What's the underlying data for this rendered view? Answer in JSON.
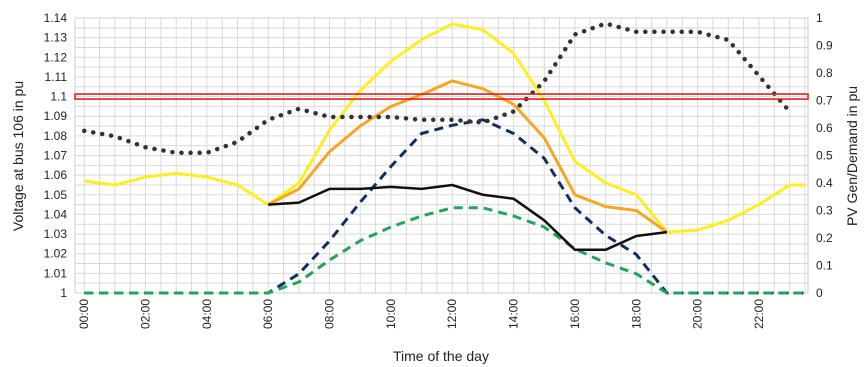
{
  "chart_data": {
    "type": "line",
    "xlabel": "Time of the day",
    "ylabel": "Voltage at bus 106 in pu",
    "y2label": "PV Gen/Demand in pu",
    "x_tick_labels": [
      "00:00",
      "02:00",
      "04:00",
      "06:00",
      "08:00",
      "10:00",
      "12:00",
      "14:00",
      "16:00",
      "18:00",
      "20:00",
      "22:00"
    ],
    "x_hours": [
      0,
      2,
      4,
      6,
      8,
      10,
      12,
      14,
      16,
      18,
      20,
      22
    ],
    "x_range_hours": [
      -0.3,
      23.6
    ],
    "ylim": [
      1.0,
      1.14
    ],
    "y_ticks": [
      1,
      1.01,
      1.02,
      1.03,
      1.04,
      1.05,
      1.06,
      1.07,
      1.08,
      1.09,
      1.1,
      1.11,
      1.12,
      1.13,
      1.14
    ],
    "y_tick_labels": [
      "1",
      "1.01",
      "1.02",
      "1.03",
      "1.04",
      "1.05",
      "1.06",
      "1.07",
      "1.08",
      "1.09",
      "1.1",
      "1.11",
      "1.12",
      "1.13",
      "1.14"
    ],
    "y2lim": [
      0,
      1.0
    ],
    "y2_ticks": [
      0,
      0.1,
      0.2,
      0.3,
      0.4,
      0.5,
      0.6,
      0.7,
      0.8,
      0.9,
      1
    ],
    "y2_tick_labels": [
      "0",
      "0.1",
      "0.2",
      "0.3",
      "0.4",
      "0.5",
      "0.6",
      "0.7",
      "0.8",
      "0.9",
      "1"
    ],
    "grid": true,
    "colors": {
      "limit": "#e02020",
      "yellow": "#ffee22",
      "orange": "#f5a623",
      "black": "#111111",
      "navy": "#12305e",
      "green": "#22a55a",
      "dots": "#333333",
      "grid": "#d9d9d9"
    },
    "series": [
      {
        "axis": "left",
        "style": "limit",
        "x": [
          -0.3,
          23.6
        ],
        "y": [
          1.1,
          1.1
        ]
      },
      {
        "axis": "left",
        "style": "yellow",
        "x": [
          0,
          1,
          2,
          3,
          4,
          5,
          6,
          7,
          8,
          9,
          10,
          11,
          12,
          13,
          14,
          15,
          16,
          17,
          18,
          19,
          20,
          21,
          22,
          23,
          23.5
        ],
        "y": [
          1.057,
          1.055,
          1.059,
          1.061,
          1.059,
          1.055,
          1.045,
          1.056,
          1.083,
          1.103,
          1.118,
          1.129,
          1.137,
          1.134,
          1.122,
          1.098,
          1.067,
          1.056,
          1.05,
          1.031,
          1.032,
          1.037,
          1.045,
          1.055,
          1.055
        ]
      },
      {
        "axis": "left",
        "style": "orange",
        "x": [
          6,
          7,
          8,
          9,
          10,
          11,
          12,
          13,
          14,
          15,
          16,
          17,
          18,
          19
        ],
        "y": [
          1.045,
          1.053,
          1.072,
          1.085,
          1.095,
          1.101,
          1.108,
          1.104,
          1.096,
          1.079,
          1.05,
          1.044,
          1.042,
          1.031
        ]
      },
      {
        "axis": "left",
        "style": "black",
        "x": [
          6,
          7,
          8,
          9,
          10,
          11,
          12,
          13,
          14,
          15,
          16,
          17,
          18,
          19
        ],
        "y": [
          1.045,
          1.046,
          1.053,
          1.053,
          1.054,
          1.053,
          1.055,
          1.05,
          1.048,
          1.037,
          1.022,
          1.022,
          1.029,
          1.031
        ]
      },
      {
        "axis": "right",
        "style": "navy",
        "x": [
          0,
          1,
          2,
          3,
          4,
          5,
          6,
          7,
          8,
          9,
          10,
          11,
          12,
          13,
          14,
          15,
          16,
          17,
          18,
          19,
          20,
          21,
          22,
          23,
          23.5
        ],
        "y": [
          0,
          0,
          0,
          0,
          0,
          0,
          0,
          0.07,
          0.19,
          0.33,
          0.46,
          0.58,
          0.61,
          0.63,
          0.58,
          0.49,
          0.31,
          0.21,
          0.14,
          0,
          0,
          0,
          0,
          0,
          0
        ]
      },
      {
        "axis": "right",
        "style": "green",
        "x": [
          0,
          1,
          2,
          3,
          4,
          5,
          6,
          7,
          8,
          9,
          10,
          11,
          12,
          13,
          14,
          15,
          16,
          17,
          18,
          19,
          20,
          21,
          22,
          23,
          23.5
        ],
        "y": [
          0,
          0,
          0,
          0,
          0,
          0,
          0,
          0.04,
          0.12,
          0.19,
          0.24,
          0.28,
          0.31,
          0.31,
          0.28,
          0.24,
          0.16,
          0.11,
          0.07,
          0,
          0,
          0,
          0,
          0,
          0
        ]
      },
      {
        "axis": "right",
        "style": "dots",
        "x": [
          0,
          1,
          2,
          3,
          4,
          5,
          6,
          7,
          8,
          9,
          10,
          11,
          12,
          13,
          14,
          15,
          16,
          17,
          18,
          19,
          20,
          21,
          22,
          23
        ],
        "y": [
          0.59,
          0.57,
          0.53,
          0.51,
          0.51,
          0.55,
          0.63,
          0.67,
          0.64,
          0.64,
          0.64,
          0.63,
          0.63,
          0.62,
          0.66,
          0.77,
          0.94,
          0.98,
          0.95,
          0.95,
          0.95,
          0.92,
          0.79,
          0.66
        ]
      }
    ]
  }
}
